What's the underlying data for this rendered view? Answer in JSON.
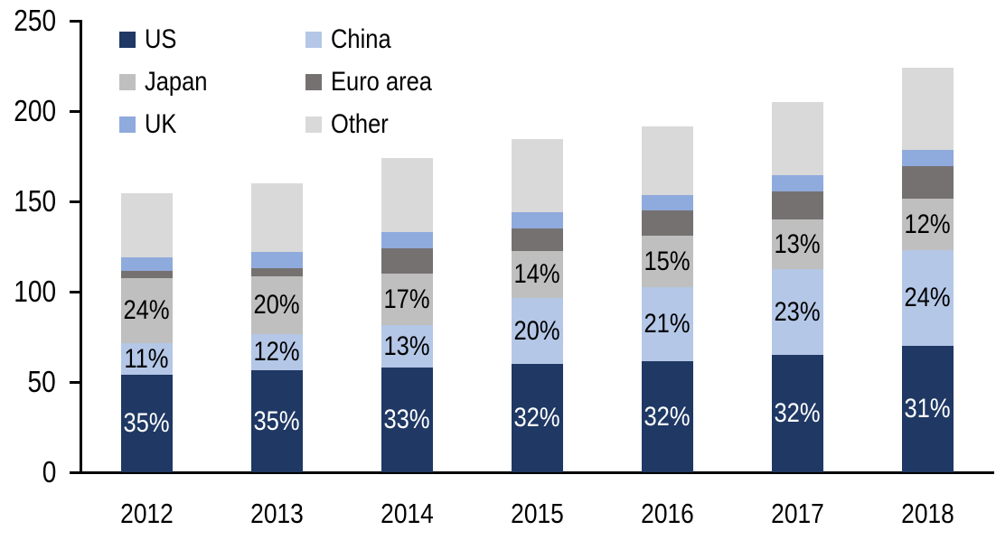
{
  "chart_data": {
    "type": "bar",
    "subtype": "stacked-column",
    "title": "",
    "categories": [
      "2012",
      "2013",
      "2014",
      "2015",
      "2016",
      "2017",
      "2018"
    ],
    "series": [
      {
        "name": "US",
        "color": "#1f3864",
        "values": [
          54,
          56.5,
          58,
          60,
          61.5,
          65,
          70
        ],
        "data_labels": [
          "35%",
          "35%",
          "33%",
          "32%",
          "32%",
          "32%",
          "31%"
        ],
        "data_label_color": "#ffffff"
      },
      {
        "name": "China",
        "color": "#b4c7e7",
        "values": [
          17.5,
          20,
          23.5,
          36.5,
          41,
          47.5,
          53
        ],
        "data_labels": [
          "11%",
          "12%",
          "13%",
          "20%",
          "21%",
          "23%",
          "24%"
        ],
        "data_label_color": "#000000"
      },
      {
        "name": "Japan",
        "color": "#bfbfbf",
        "values": [
          36,
          32,
          28.5,
          26,
          28.5,
          27.5,
          28.5
        ],
        "data_labels": [
          "24%",
          "20%",
          "17%",
          "14%",
          "15%",
          "13%",
          "12%"
        ],
        "data_label_color": "#000000"
      },
      {
        "name": "Euro area",
        "color": "#767171",
        "values": [
          4,
          4.5,
          14,
          12.5,
          14,
          15.5,
          18
        ],
        "data_labels": null,
        "data_label_color": null
      },
      {
        "name": "UK",
        "color": "#8faadc",
        "values": [
          7.5,
          9,
          9,
          9,
          8.5,
          9,
          9
        ],
        "data_labels": null,
        "data_label_color": null
      },
      {
        "name": "Other",
        "color": "#d9d9d9",
        "values": [
          35.5,
          38,
          41,
          40.5,
          38,
          40.5,
          45.5
        ],
        "data_labels": null,
        "data_label_color": null
      }
    ],
    "totals": [
      154.5,
      160,
      174,
      184.5,
      191.5,
      205,
      224
    ],
    "y_axis": {
      "min": 0,
      "max": 250,
      "tick_step": 50,
      "tick_labels": [
        "0",
        "50",
        "100",
        "150",
        "200",
        "250"
      ]
    },
    "x_axis": {
      "tick_labels": [
        "2012",
        "2013",
        "2014",
        "2015",
        "2016",
        "2017",
        "2018"
      ]
    },
    "legend": {
      "position": "top-left",
      "columns": 2,
      "entries": [
        "US",
        "China",
        "Japan",
        "Euro area",
        "UK",
        "Other"
      ]
    },
    "grid": "off",
    "axis_color": "#000000",
    "background_color": "#ffffff"
  }
}
